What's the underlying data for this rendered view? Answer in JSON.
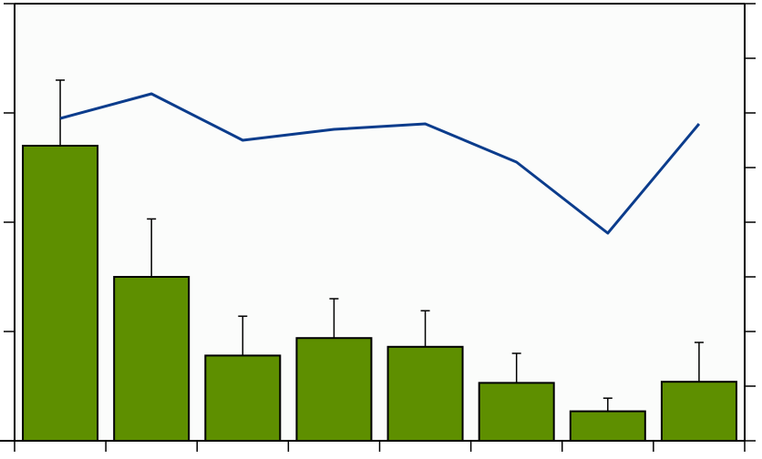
{
  "chart_data": {
    "type": "bar",
    "categories": [
      "",
      "",
      "",
      "",
      "",
      "",
      "",
      ""
    ],
    "series": [
      {
        "type": "bar",
        "axis": "left",
        "values": [
          2.7,
          1.5,
          0.78,
          0.94,
          0.86,
          0.53,
          0.27,
          0.54
        ],
        "error": [
          0.6,
          0.53,
          0.36,
          0.36,
          0.33,
          0.27,
          0.12,
          0.36
        ]
      },
      {
        "type": "line",
        "axis": "right",
        "values": [
          5.9,
          6.35,
          5.5,
          5.7,
          5.8,
          5.1,
          3.8,
          5.8
        ]
      }
    ],
    "ylim_left": [
      0,
      4
    ],
    "yticks_left": [
      0,
      1,
      2,
      3,
      4
    ],
    "ylim_right": [
      0,
      8
    ],
    "yticks_right": [
      0,
      1,
      2,
      3,
      4,
      5,
      6,
      7,
      8
    ],
    "grid": false,
    "colors": {
      "bar_fill": "#5e8f00",
      "bar_edge": "#000000",
      "line": "#0b3c8c",
      "plot_bg": "#fbfcfb",
      "axis": "#000000"
    }
  }
}
